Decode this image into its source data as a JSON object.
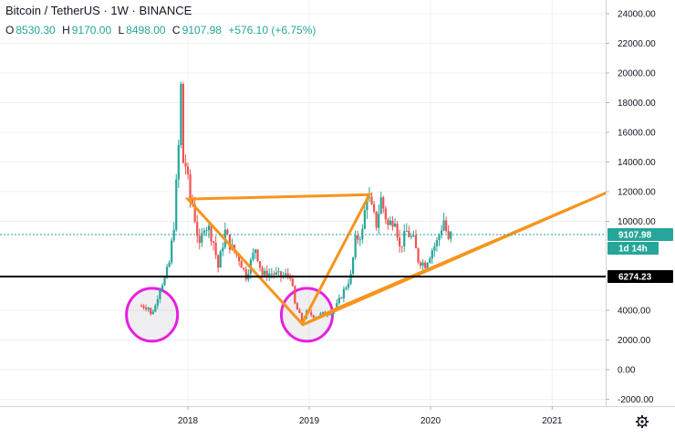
{
  "header": {
    "symbol": "Bitcoin / TetherUS",
    "sep1": "·",
    "interval": "1W",
    "sep2": "·",
    "exchange": "BINANCE",
    "ohlc": [
      {
        "k": "O",
        "v": "8530.30"
      },
      {
        "k": "H",
        "v": "9170.00"
      },
      {
        "k": "L",
        "v": "8498.00"
      },
      {
        "k": "C",
        "v": "9107.98"
      },
      {
        "k": "",
        "v": "+576.10 (+6.75%)"
      }
    ]
  },
  "price_axis": {
    "ticks": [
      "24000.00",
      "22000.00",
      "20000.00",
      "18000.00",
      "16000.00",
      "14000.00",
      "12000.00",
      "10000.00",
      "4000.00",
      "2000.00",
      "0.00",
      "-2000.00"
    ],
    "tick_values": [
      24000,
      22000,
      20000,
      18000,
      16000,
      14000,
      12000,
      10000,
      4000,
      2000,
      0,
      -2000
    ],
    "last_price_label": "9107.98",
    "last_price": 9107.98,
    "countdown_label": "1d 14h",
    "level_label": "6274.23",
    "level": 6274.23,
    "colors": {
      "last_price_bg": "#26a69a",
      "level_bg": "#000000",
      "grid": "#e9ecef"
    }
  },
  "time_axis": {
    "labels": [
      "2018",
      "2019",
      "2020",
      "2021"
    ],
    "settings_icon": "gear-icon"
  },
  "chart_data": {
    "type": "candlestick",
    "title": "Bitcoin / TetherUS · 1W · BINANCE",
    "ylim": [
      -2500,
      25000
    ],
    "horizontal_levels": [
      6274.23
    ],
    "last_price": 9107.98,
    "colors": {
      "up": "#26a69a",
      "down": "#ef5350",
      "drawings": "#f7941d",
      "circles": "#e91ee0",
      "level": "#000000"
    },
    "drawings": [
      {
        "type": "triangle",
        "points": [
          [
            "2018-01-01",
            11500
          ],
          [
            "2019-07-01",
            11800
          ],
          [
            "2018-12-10",
            3100
          ]
        ]
      },
      {
        "type": "triangle",
        "points": [
          [
            "2018-12-10",
            3000
          ],
          [
            "2021-07-01",
            12100
          ],
          [
            "2019-04-01",
            4200
          ]
        ]
      },
      {
        "type": "ellipse",
        "center": [
          "2017-09-15",
          3700
        ]
      },
      {
        "type": "ellipse",
        "center": [
          "2018-12-25",
          3700
        ]
      }
    ],
    "candles_anchor": [
      [
        "2017-08-14",
        4300
      ],
      [
        "2017-09-04",
        4200
      ],
      [
        "2017-09-11",
        3700
      ],
      [
        "2017-09-25",
        4300
      ],
      [
        "2017-10-09",
        5600
      ],
      [
        "2017-10-23",
        6100
      ],
      [
        "2017-11-06",
        7200
      ],
      [
        "2017-11-20",
        9800
      ],
      [
        "2017-12-04",
        15000
      ],
      [
        "2017-12-11",
        19000
      ],
      [
        "2017-12-18",
        14000
      ],
      [
        "2017-12-25",
        13800
      ],
      [
        "2018-01-08",
        11500
      ],
      [
        "2018-01-15",
        11200
      ],
      [
        "2018-02-05",
        8200
      ],
      [
        "2018-02-19",
        9800
      ],
      [
        "2018-03-05",
        9500
      ],
      [
        "2018-03-19",
        8600
      ],
      [
        "2018-04-02",
        6900
      ],
      [
        "2018-04-23",
        9300
      ],
      [
        "2018-05-07",
        8400
      ],
      [
        "2018-06-04",
        7500
      ],
      [
        "2018-06-25",
        6300
      ],
      [
        "2018-07-23",
        8200
      ],
      [
        "2018-08-13",
        6400
      ],
      [
        "2018-09-10",
        6500
      ],
      [
        "2018-10-08",
        6300
      ],
      [
        "2018-11-05",
        6400
      ],
      [
        "2018-11-19",
        4400
      ],
      [
        "2018-12-10",
        3300
      ],
      [
        "2018-12-24",
        3800
      ],
      [
        "2019-01-21",
        3600
      ],
      [
        "2019-02-18",
        3800
      ],
      [
        "2019-03-18",
        4000
      ],
      [
        "2019-04-08",
        5000
      ],
      [
        "2019-05-06",
        6300
      ],
      [
        "2019-05-20",
        8700
      ],
      [
        "2019-06-10",
        9300
      ],
      [
        "2019-06-24",
        12000
      ],
      [
        "2019-07-08",
        10800
      ],
      [
        "2019-07-22",
        9800
      ],
      [
        "2019-08-05",
        11500
      ],
      [
        "2019-08-26",
        9700
      ],
      [
        "2019-09-16",
        10300
      ],
      [
        "2019-09-30",
        8200
      ],
      [
        "2019-10-21",
        9300
      ],
      [
        "2019-11-11",
        8700
      ],
      [
        "2019-11-25",
        7400
      ],
      [
        "2019-12-16",
        7100
      ],
      [
        "2020-01-06",
        8100
      ],
      [
        "2020-01-20",
        8600
      ],
      [
        "2020-02-10",
        10100
      ],
      [
        "2020-02-24",
        8600
      ],
      [
        "2020-03-02",
        9108
      ]
    ]
  }
}
